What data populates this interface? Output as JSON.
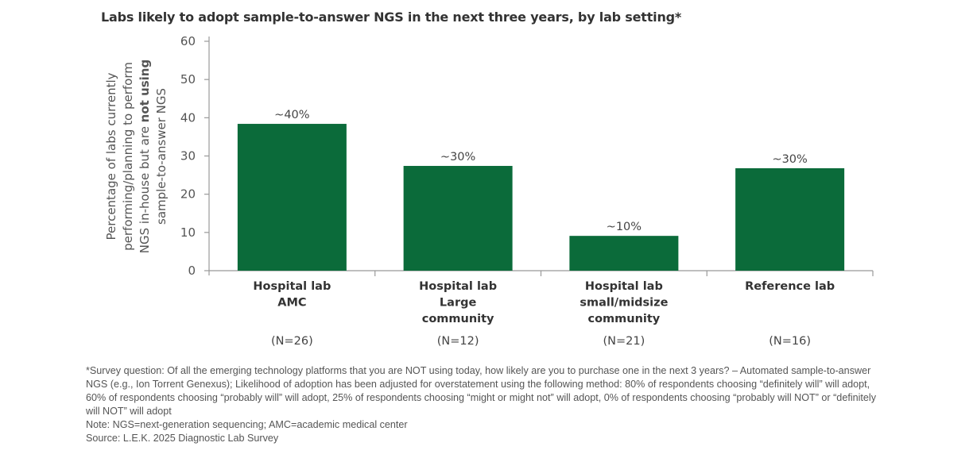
{
  "chart_data": {
    "type": "bar",
    "title": "Labs likely to adopt sample-to-answer NGS in the next three years, by lab setting*",
    "ylabel_lines": [
      [
        {
          "t": "Percentage of labs currently"
        }
      ],
      [
        {
          "t": "performing/planning to perform"
        }
      ],
      [
        {
          "t": "NGS in-house but are "
        },
        {
          "t": "not using",
          "b": true
        }
      ],
      [
        {
          "t": "sample-to-answer NGS"
        }
      ]
    ],
    "ylim": [
      0,
      60
    ],
    "yticks": [
      0,
      10,
      20,
      30,
      40,
      50,
      60
    ],
    "categories": [
      {
        "lines": [
          "Hospital lab",
          "AMC"
        ],
        "n": "(N=26)"
      },
      {
        "lines": [
          "Hospital lab",
          "Large",
          "community"
        ],
        "n": "(N=12)"
      },
      {
        "lines": [
          "Hospital lab",
          "small/midsize",
          "community"
        ],
        "n": "(N=21)"
      },
      {
        "lines": [
          "Reference lab"
        ],
        "n": "(N=16)"
      }
    ],
    "values": [
      38.4,
      27.4,
      9.1,
      26.8
    ],
    "data_labels": [
      "~40%",
      "~30%",
      "~10%",
      "~30%"
    ],
    "bar_color": "#0b6b3a",
    "grid": false,
    "legend": "none"
  },
  "footnotes": {
    "survey": "*Survey question: Of all the emerging technology platforms that you are NOT using today, how likely are you to purchase one in the next 3 years? – Automated sample-to-answer NGS (e.g., Ion Torrent Genexus); Likelihood of adoption has been adjusted for overstatement using the following method: 80% of respondents choosing “definitely will” will adopt, 60% of respondents choosing “probably will” will adopt, 25% of respondents choosing “might or might not” will adopt, 0% of respondents choosing “probably will NOT” or “definitely will NOT” will adopt",
    "note": "Note: NGS=next-generation sequencing; AMC=academic medical center",
    "source": "Source: L.E.K. 2025 Diagnostic Lab Survey"
  }
}
